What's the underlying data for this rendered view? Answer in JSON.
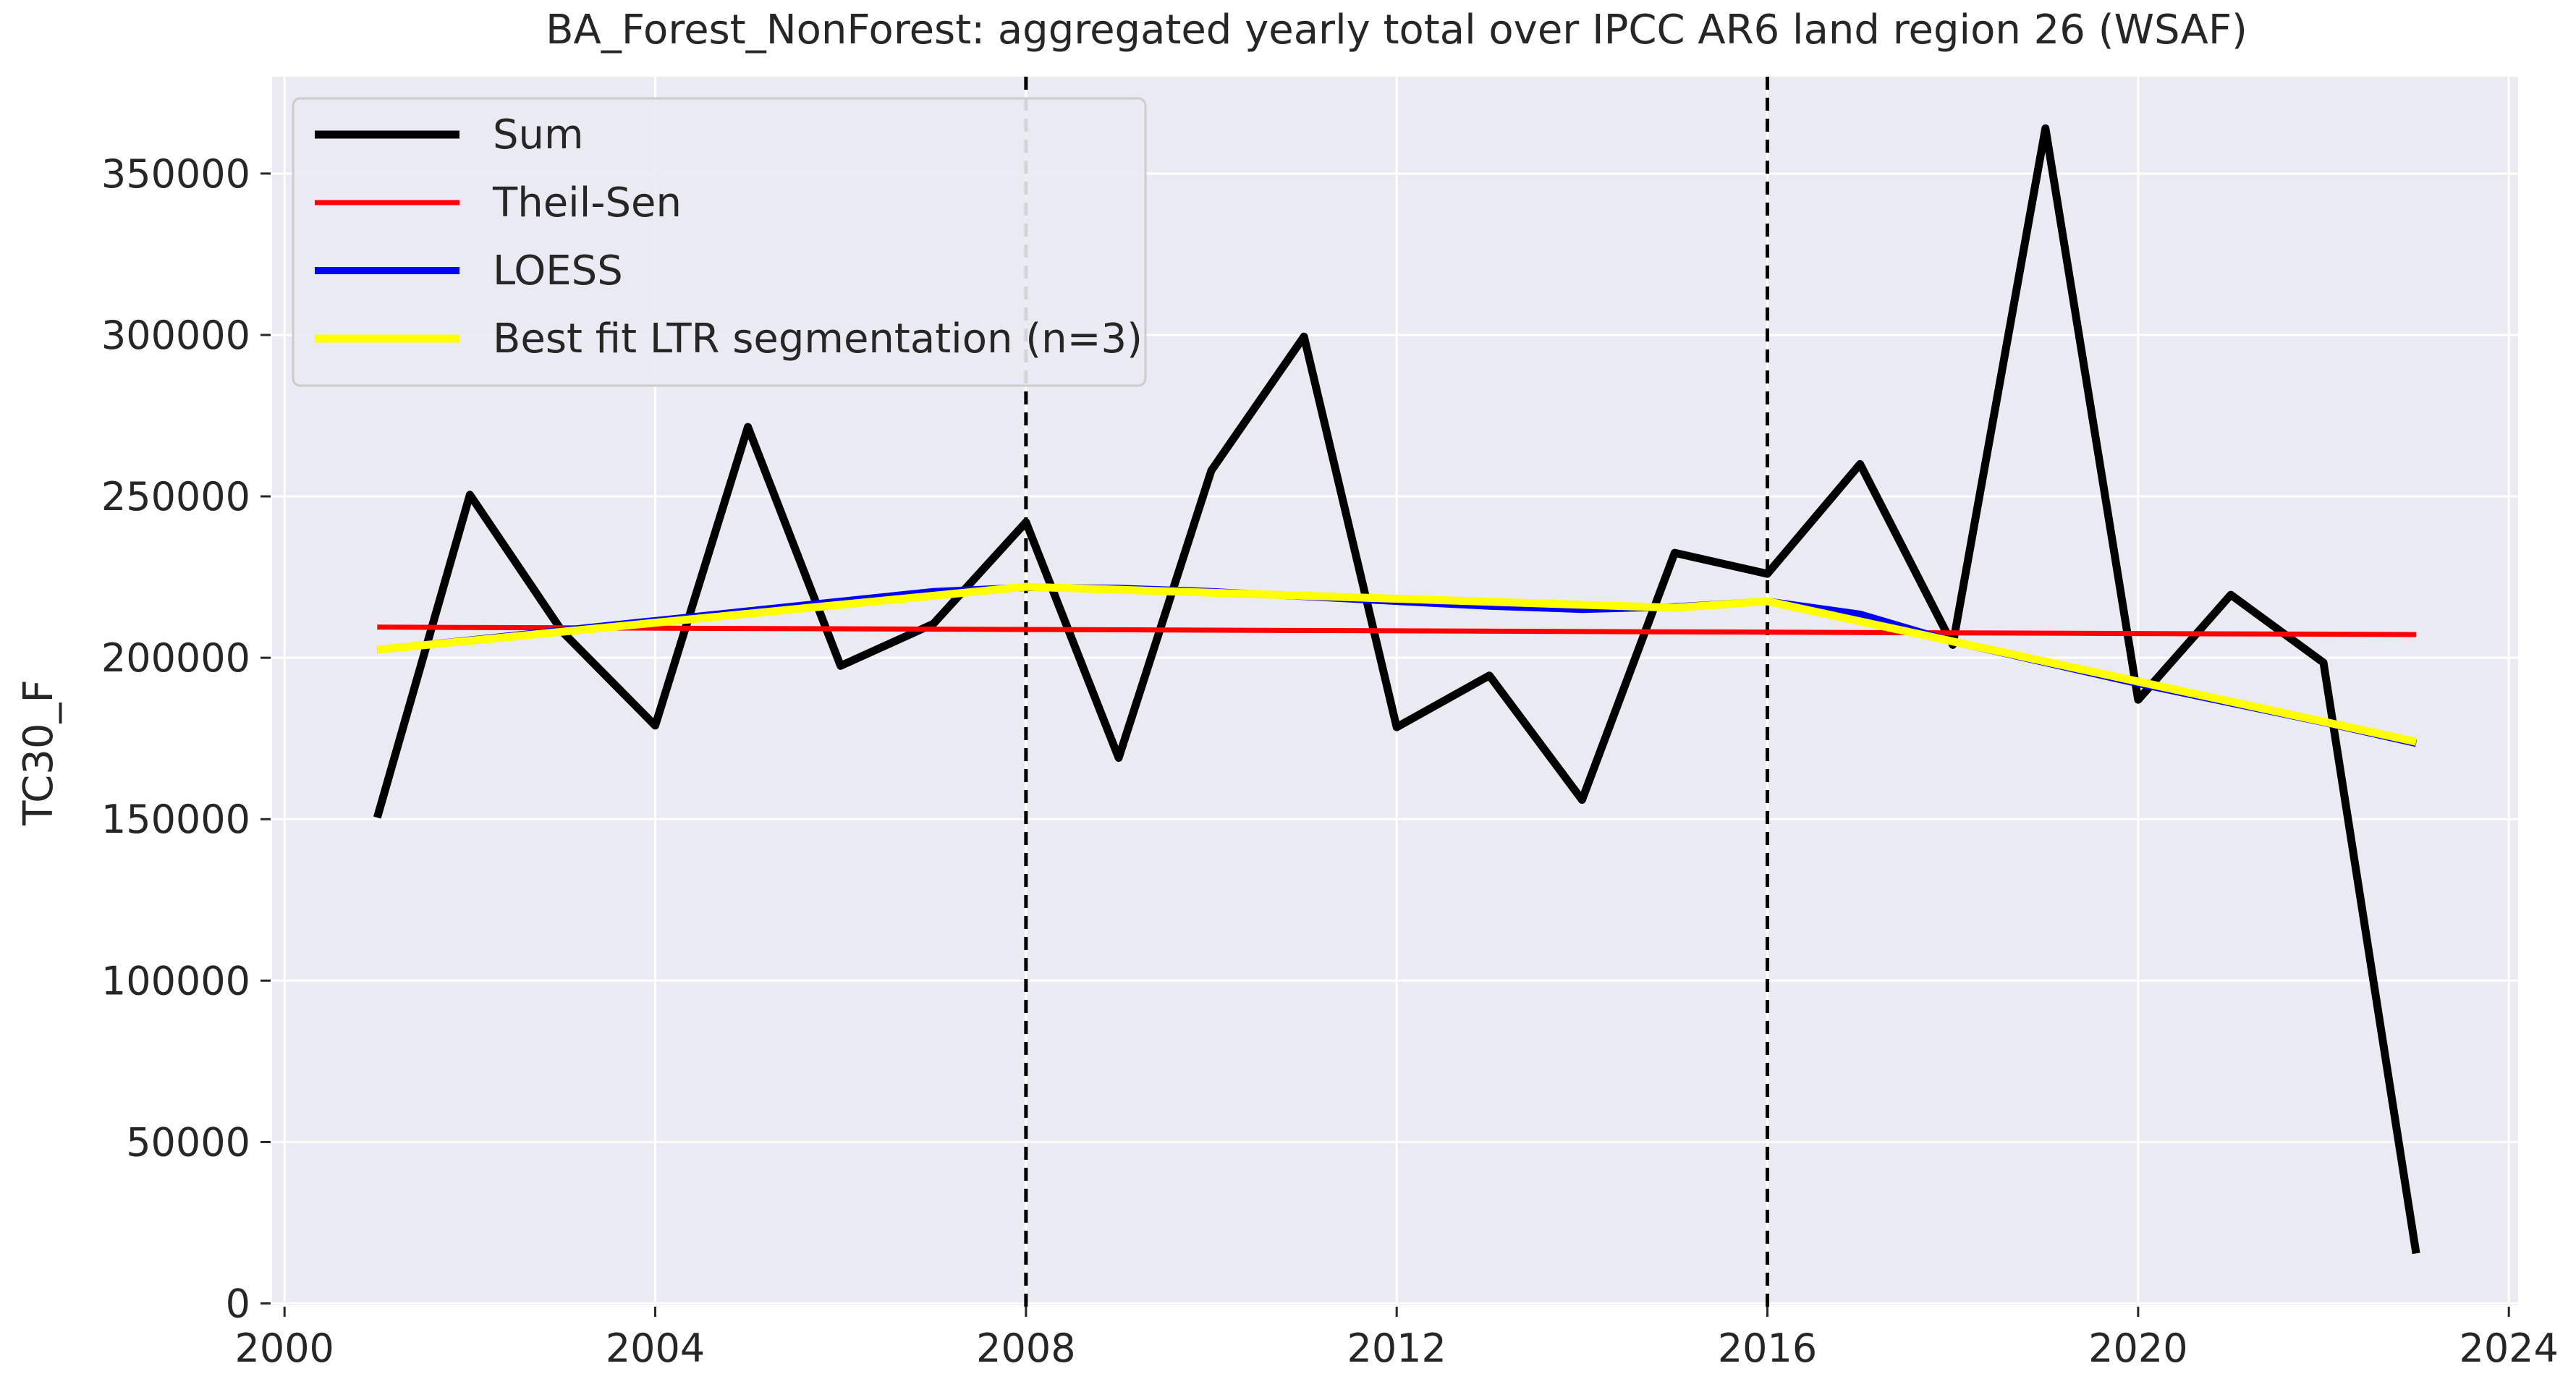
{
  "chart_data": {
    "type": "line",
    "title": "BA_Forest_NonForest: aggregated yearly total over IPCC AR6 land region 26 (WSAF)",
    "xlabel": "",
    "ylabel": "TC30_F",
    "xlim": [
      1999.85,
      2024.1
    ],
    "ylim": [
      -1000,
      380000
    ],
    "xticks": [
      2000,
      2004,
      2008,
      2012,
      2016,
      2020,
      2024
    ],
    "yticks": [
      0,
      50000,
      100000,
      150000,
      200000,
      250000,
      300000,
      350000
    ],
    "grid": true,
    "background": "#eaeaf2",
    "legend_position": "top-left",
    "breakpoints": [
      2008,
      2016
    ],
    "series": [
      {
        "name": "Sum",
        "color": "#000000",
        "x": [
          2001,
          2002,
          2003,
          2004,
          2005,
          2006,
          2007,
          2008,
          2009,
          2010,
          2011,
          2012,
          2013,
          2014,
          2015,
          2016,
          2017,
          2018,
          2019,
          2020,
          2021,
          2022,
          2023
        ],
        "y": [
          150500,
          250500,
          208000,
          179000,
          271500,
          197500,
          210500,
          242000,
          169000,
          258000,
          299500,
          178500,
          194500,
          156000,
          232500,
          226000,
          260000,
          204000,
          364000,
          187000,
          219500,
          198500,
          15500
        ]
      },
      {
        "name": "Theil-Sen",
        "color": "#ff0000",
        "x": [
          2001,
          2023
        ],
        "y": [
          209500,
          207200
        ]
      },
      {
        "name": "LOESS",
        "color": "#0000ff",
        "x": [
          2001,
          2002,
          2003,
          2004,
          2005,
          2006,
          2007,
          2008,
          2009,
          2010,
          2011,
          2012,
          2013,
          2014,
          2015,
          2016,
          2017,
          2018,
          2019,
          2020,
          2021,
          2022,
          2023
        ],
        "y": [
          202500,
          205500,
          208500,
          211500,
          214500,
          217500,
          220500,
          221800,
          221500,
          220500,
          219000,
          217500,
          216000,
          215000,
          215800,
          217500,
          213500,
          205000,
          198500,
          192000,
          186000,
          180000,
          173500
        ]
      },
      {
        "name": "Best fit LTR segmentation (n=3)",
        "color": "#ffff00",
        "x": [
          2001,
          2008,
          2015,
          2016,
          2023
        ],
        "y": [
          202500,
          222000,
          215500,
          217500,
          174000
        ]
      }
    ],
    "legend": [
      "Sum",
      "Theil-Sen",
      "LOESS",
      "Best fit LTR segmentation (n=3)"
    ]
  }
}
